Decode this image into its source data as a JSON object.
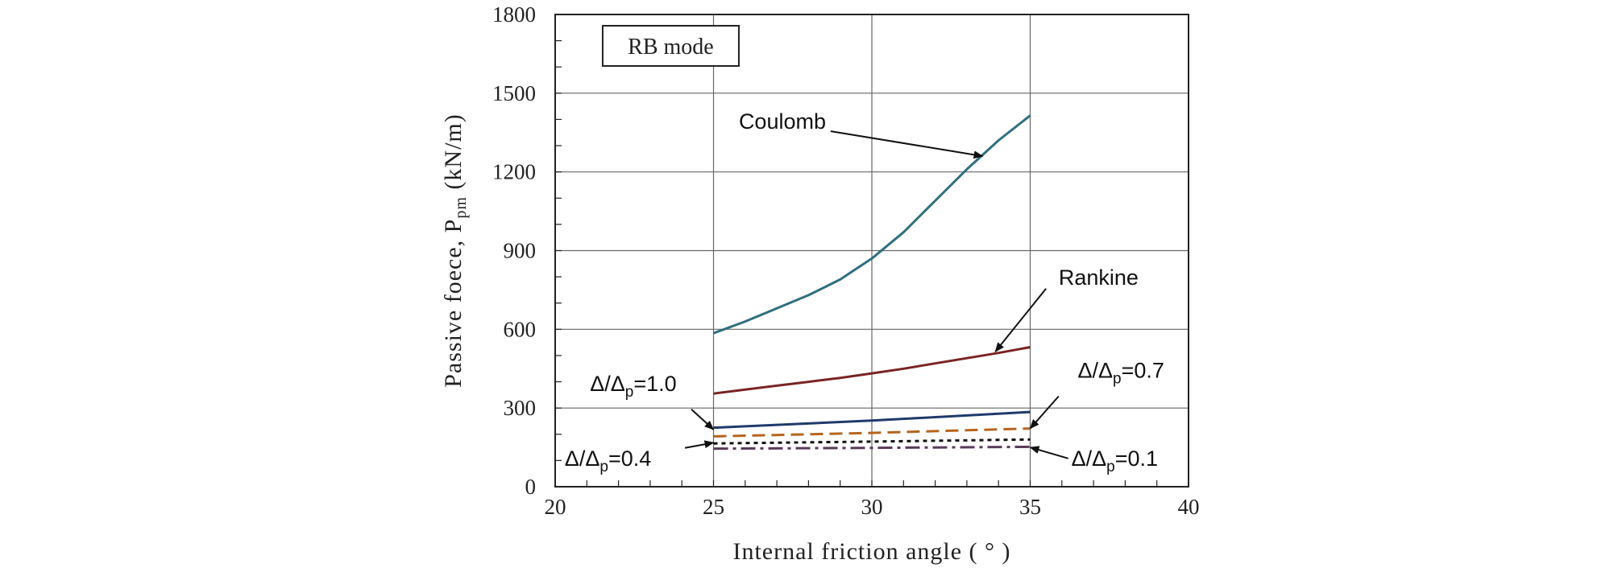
{
  "chart_data": {
    "type": "line",
    "title": "",
    "mode_label": "RB mode",
    "xlabel": "Internal friction angle ( ° )",
    "ylabel": {
      "main": "Passive foece, P",
      "subscript": "pm",
      "unit": " (kN/m)"
    },
    "xlim": [
      20,
      40
    ],
    "ylim": [
      0,
      1800
    ],
    "xticks": [
      20,
      25,
      30,
      35,
      40
    ],
    "yticks": [
      0,
      300,
      600,
      900,
      1200,
      1500,
      1800
    ],
    "x_minor_step": 1,
    "y_minor_step": 100,
    "grid": true,
    "series": [
      {
        "name": "Coulomb",
        "color": "#2f6f7f",
        "dash": "solid",
        "x": [
          25,
          26,
          27,
          28,
          29,
          30,
          31,
          32,
          33,
          34,
          35
        ],
        "y": [
          585,
          630,
          680,
          730,
          790,
          870,
          970,
          1090,
          1210,
          1320,
          1415
        ]
      },
      {
        "name": "Rankine",
        "color": "#7a2424",
        "dash": "solid",
        "x": [
          25,
          26,
          27,
          28,
          29,
          30,
          31,
          32,
          33,
          34,
          35
        ],
        "y": [
          355,
          370,
          385,
          400,
          415,
          432,
          450,
          470,
          490,
          510,
          532
        ]
      },
      {
        "name": "Δ/Δp=1.0",
        "color": "#1f3a6b",
        "dash": "solid",
        "x": [
          25,
          30,
          35
        ],
        "y": [
          225,
          252,
          285
        ]
      },
      {
        "name": "Δ/Δp=0.7",
        "color": "#b5651d",
        "dash": "dashed",
        "x": [
          25,
          30,
          35
        ],
        "y": [
          192,
          205,
          222
        ]
      },
      {
        "name": "Δ/Δp=0.4",
        "color": "#111111",
        "dash": "dotted",
        "x": [
          25,
          30,
          35
        ],
        "y": [
          165,
          172,
          180
        ]
      },
      {
        "name": "Δ/Δp=0.1",
        "color": "#5a3a5a",
        "dash": "dashdot",
        "x": [
          25,
          30,
          35
        ],
        "y": [
          145,
          148,
          152
        ]
      }
    ],
    "annotations": [
      {
        "text_main": "Coulomb",
        "text_sub": "",
        "text_tail": "",
        "label_x": 25.8,
        "label_y": 1365,
        "point_x": 33.5,
        "point_y": 1260,
        "arrow_from_x": 28.7,
        "arrow_from_y": 1355
      },
      {
        "text_main": "Rankine",
        "text_sub": "",
        "text_tail": "",
        "label_x": 35.9,
        "label_y": 770,
        "point_x": 33.9,
        "point_y": 515,
        "arrow_from_x": 35.5,
        "arrow_from_y": 755
      },
      {
        "text_main": "Δ/Δ",
        "text_sub": "p",
        "text_tail": "=1.0",
        "label_x": 21.1,
        "label_y": 365,
        "point_x": 25.0,
        "point_y": 218,
        "arrow_from_x": 24.3,
        "arrow_from_y": 295
      },
      {
        "text_main": "Δ/Δ",
        "text_sub": "p",
        "text_tail": "=0.7",
        "label_x": 36.5,
        "label_y": 415,
        "point_x": 35.0,
        "point_y": 222,
        "arrow_from_x": 35.9,
        "arrow_from_y": 345
      },
      {
        "text_main": "Δ/Δ",
        "text_sub": "p",
        "text_tail": "=0.4",
        "label_x": 20.3,
        "label_y": 80,
        "point_x": 25.0,
        "point_y": 168,
        "arrow_from_x": 24.1,
        "arrow_from_y": 148
      },
      {
        "text_main": "Δ/Δ",
        "text_sub": "p",
        "text_tail": "=0.1",
        "label_x": 36.3,
        "label_y": 80,
        "point_x": 35.0,
        "point_y": 150,
        "arrow_from_x": 36.2,
        "arrow_from_y": 108
      }
    ]
  }
}
